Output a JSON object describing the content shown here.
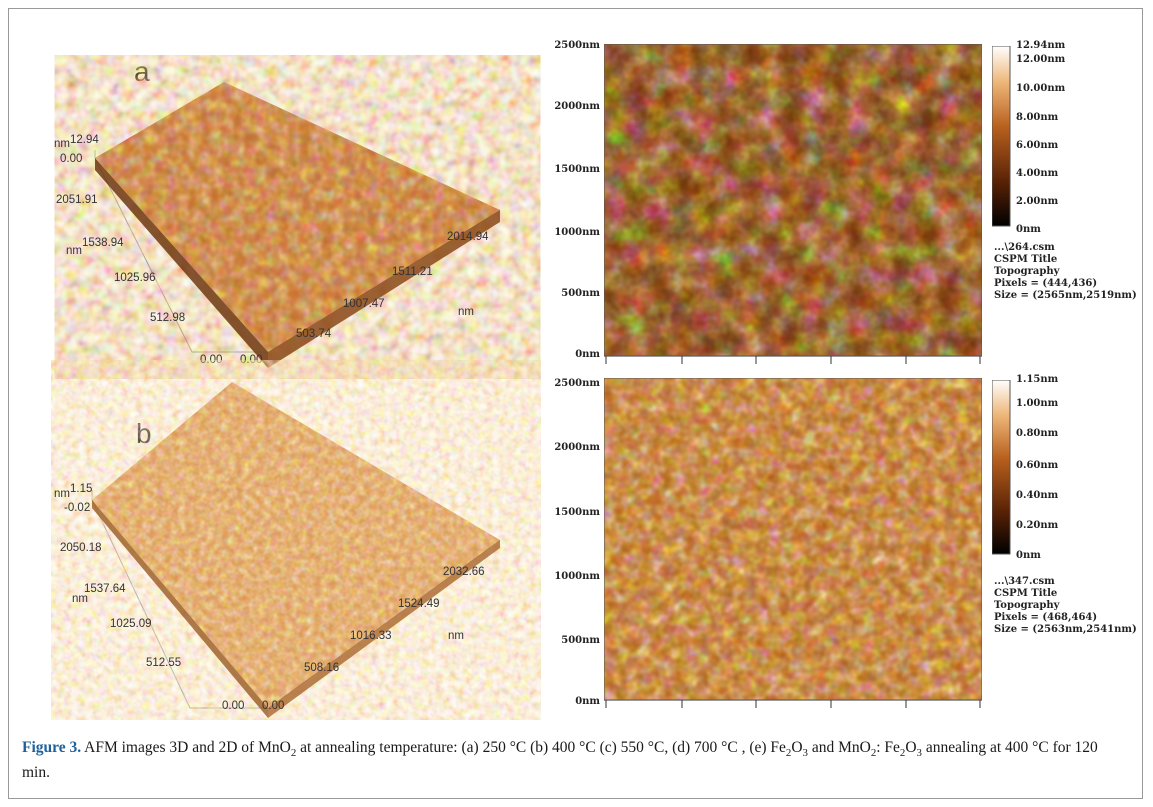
{
  "figure": {
    "caption_label": "Figure 3.",
    "caption_text": {
      "p1": "AFM images 3D and 2D of MnO",
      "p2": " at annealing temperature: (a) 250 °C (b) 400 °C (c) 550 °C, (d) 700 °C , (e) Fe",
      "p3": "O",
      "p4": " and MnO",
      "p5": ": Fe",
      "p6": "O",
      "p7": " annealing at 400 °C for 120 min.",
      "sub2": "2",
      "sub3": "3"
    }
  },
  "panel_a": {
    "label": "a",
    "z_unit": "nm",
    "z_max": "12.94",
    "z_min": "0.00",
    "y_unit": "nm",
    "y_ticks": [
      "2051.91",
      "1538.94",
      "1025.96",
      "512.98",
      "0.00"
    ],
    "x_unit": "nm",
    "x_ticks": [
      "2014.94",
      "1511.21",
      "1007.47",
      "503.74",
      "0.00"
    ],
    "image2d": {
      "y_ticks": [
        "2500nm",
        "2000nm",
        "1500nm",
        "1000nm",
        "500nm",
        "0nm"
      ],
      "colorbar": [
        "12.94nm",
        "12.00nm",
        "10.00nm",
        "8.00nm",
        "6.00nm",
        "4.00nm",
        "2.00nm",
        "0nm"
      ],
      "info": [
        "...\\264.csm",
        "CSPM Title",
        "Topography",
        "Pixels = (444,436)",
        "Size = (2565nm,2519nm)"
      ]
    }
  },
  "panel_b": {
    "label": "b",
    "z_unit": "nm",
    "z_max": "1.15",
    "z_min": "-0.02",
    "y_unit": "nm",
    "y_ticks": [
      "2050.18",
      "1537.64",
      "1025.09",
      "512.55",
      "0.00"
    ],
    "x_unit": "nm",
    "x_ticks": [
      "2032.66",
      "1524.49",
      "1016.33",
      "508.16",
      "0.00"
    ],
    "image2d": {
      "y_ticks": [
        "2500nm",
        "2000nm",
        "1500nm",
        "1000nm",
        "500nm",
        "0nm"
      ],
      "colorbar": [
        "1.15nm",
        "1.00nm",
        "0.80nm",
        "0.60nm",
        "0.40nm",
        "0.20nm",
        "0nm"
      ],
      "info": [
        "...\\347.csm",
        "CSPM Title",
        "Topography",
        "Pixels = (468,464)",
        "Size = (2563nm,2541nm)"
      ]
    }
  },
  "colors": {
    "afm_dark": "#2a0e02",
    "afm_mid": "#b8601e",
    "afm_light": "#fff4dc",
    "caption_label": "#1f5f9a"
  }
}
